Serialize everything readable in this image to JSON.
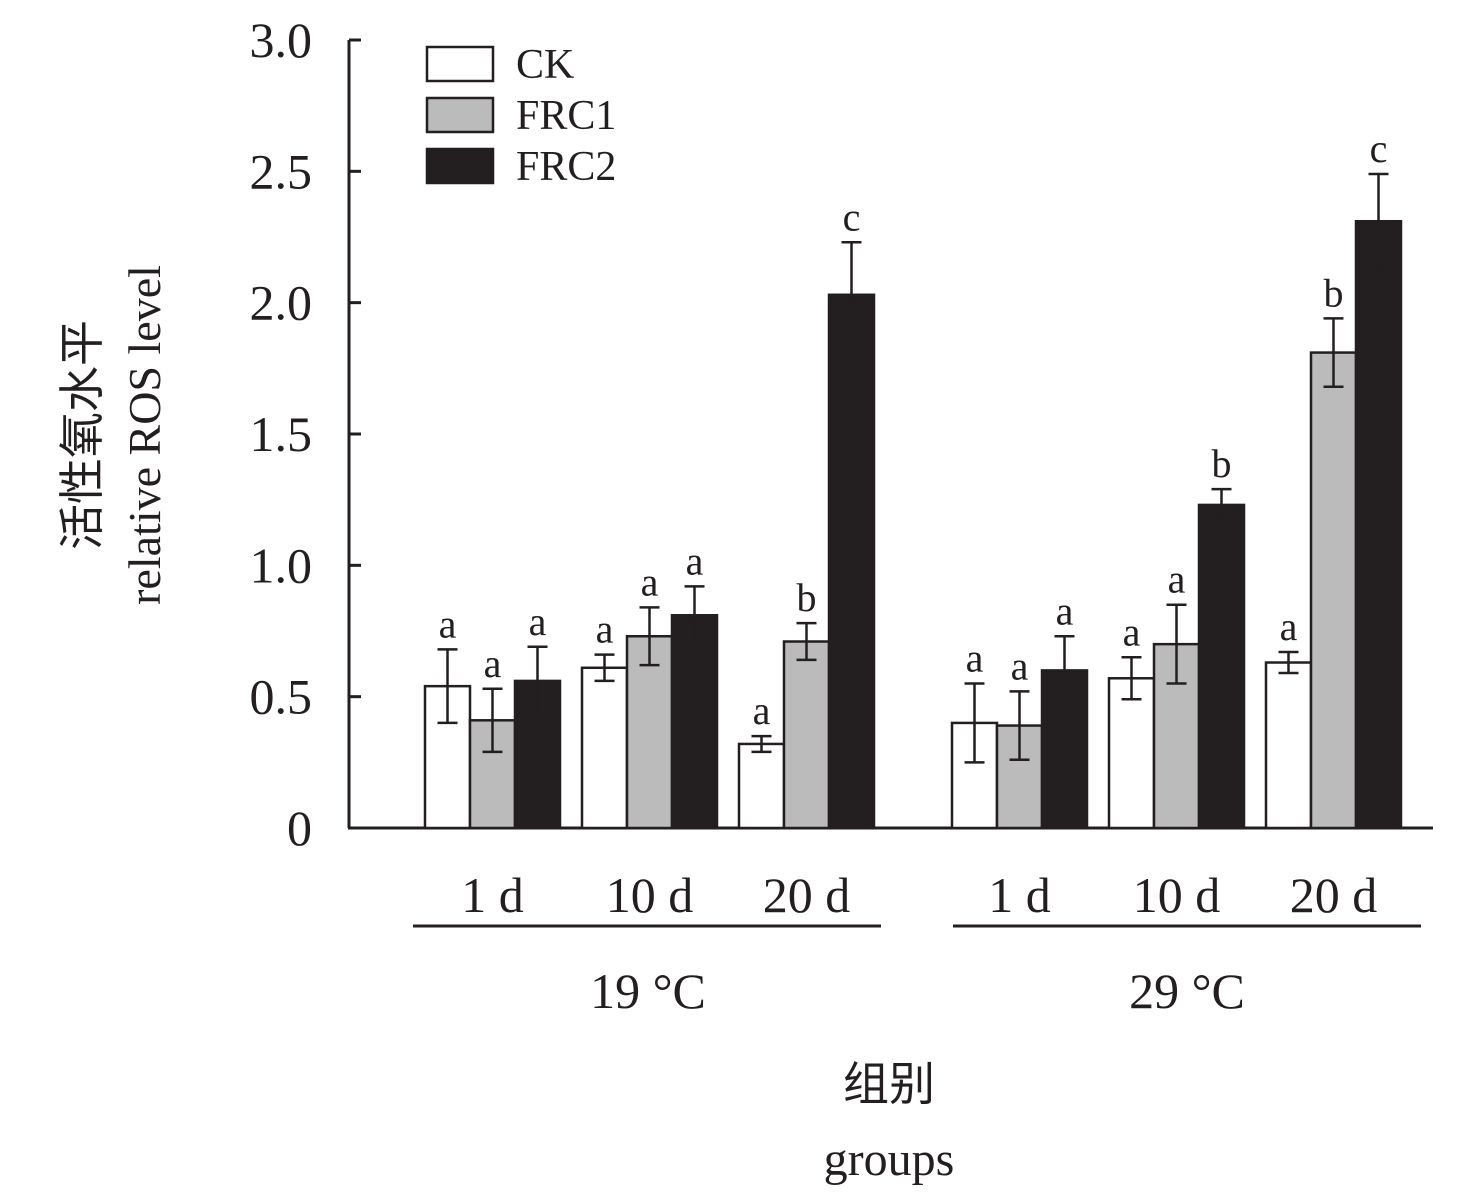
{
  "chart_data": {
    "type": "bar",
    "ylabel_cn": "活性氧水平",
    "ylabel": "relative ROS level",
    "xlabel_cn": "组别",
    "xlabel": "groups",
    "ylim": [
      0,
      3.0
    ],
    "y_ticks": [
      "0",
      "0.5",
      "1.0",
      "1.5",
      "2.0",
      "2.5",
      "3.0"
    ],
    "y_tick_values": [
      0,
      0.5,
      1.0,
      1.5,
      2.0,
      2.5,
      3.0
    ],
    "legend_position": "top-left",
    "series": [
      {
        "name": "CK",
        "color": "#ffffff"
      },
      {
        "name": "FRC1",
        "color": "#bbbbbb"
      },
      {
        "name": "FRC2",
        "color": "#231f20"
      }
    ],
    "groups": [
      {
        "label": "19 °C",
        "categories": [
          {
            "label": "1 d",
            "bars": [
              {
                "value": 0.54,
                "err": 0.14,
                "sig": "a"
              },
              {
                "value": 0.41,
                "err": 0.12,
                "sig": "a"
              },
              {
                "value": 0.56,
                "err": 0.13,
                "sig": "a"
              }
            ]
          },
          {
            "label": "10 d",
            "bars": [
              {
                "value": 0.61,
                "err": 0.05,
                "sig": "a"
              },
              {
                "value": 0.73,
                "err": 0.11,
                "sig": "a"
              },
              {
                "value": 0.81,
                "err": 0.11,
                "sig": "a"
              }
            ]
          },
          {
            "label": "20 d",
            "bars": [
              {
                "value": 0.32,
                "err": 0.03,
                "sig": "a"
              },
              {
                "value": 0.71,
                "err": 0.07,
                "sig": "b"
              },
              {
                "value": 2.03,
                "err": 0.2,
                "sig": "c"
              }
            ]
          }
        ]
      },
      {
        "label": "29 °C",
        "categories": [
          {
            "label": "1 d",
            "bars": [
              {
                "value": 0.4,
                "err": 0.15,
                "sig": "a"
              },
              {
                "value": 0.39,
                "err": 0.13,
                "sig": "a"
              },
              {
                "value": 0.6,
                "err": 0.13,
                "sig": "a"
              }
            ]
          },
          {
            "label": "10 d",
            "bars": [
              {
                "value": 0.57,
                "err": 0.08,
                "sig": "a"
              },
              {
                "value": 0.7,
                "err": 0.15,
                "sig": "a"
              },
              {
                "value": 1.23,
                "err": 0.06,
                "sig": "b"
              }
            ]
          },
          {
            "label": "20 d",
            "bars": [
              {
                "value": 0.63,
                "err": 0.04,
                "sig": "a"
              },
              {
                "value": 1.81,
                "err": 0.13,
                "sig": "b"
              },
              {
                "value": 2.31,
                "err": 0.18,
                "sig": "c"
              }
            ]
          }
        ]
      }
    ]
  }
}
